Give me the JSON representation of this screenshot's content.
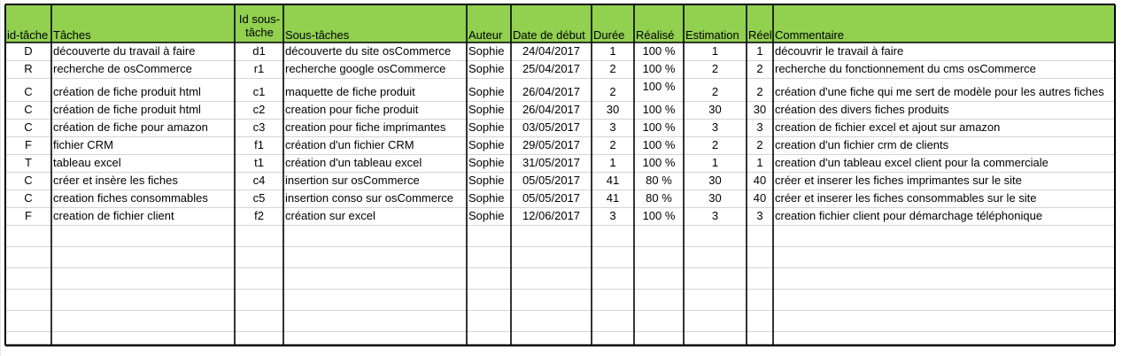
{
  "sheet": {
    "header_fill": "#92d050",
    "grid_color": "#d4d4d4",
    "border_color": "#000000",
    "columns": [
      {
        "key": "id_tache",
        "label": "id-tâche"
      },
      {
        "key": "taches",
        "label": "Tâches"
      },
      {
        "key": "id_sous",
        "label": "Id sous-\ntâche"
      },
      {
        "key": "sous_taches",
        "label": "Sous-tâches"
      },
      {
        "key": "auteur",
        "label": "Auteur"
      },
      {
        "key": "debut",
        "label": "Date de début"
      },
      {
        "key": "duree",
        "label": "Durée"
      },
      {
        "key": "realise",
        "label": "Réalisé"
      },
      {
        "key": "estimation",
        "label": "Estimation"
      },
      {
        "key": "reel",
        "label": "Réel"
      },
      {
        "key": "commentaire",
        "label": "Commentaire"
      }
    ],
    "rows": [
      [
        "D",
        "découverte du travail à faire",
        "d1",
        "découverte du site osCommerce",
        "Sophie",
        "24/04/2017",
        "1",
        "100 %",
        "1",
        "1",
        "découvrir le travail à faire"
      ],
      [
        "R",
        "recherche de osCommerce",
        "r1",
        "recherche google osCommerce",
        "Sophie",
        "25/04/2017",
        "2",
        "100 %",
        "2",
        "2",
        "recherche du fonctionnement du cms osCommerce"
      ],
      [
        "C",
        "création de fiche produit html",
        "c1",
        "maquette de fiche produit",
        "Sophie",
        "26/04/2017",
        "2",
        "100 %",
        "2",
        "2",
        "création d'une fiche qui me sert de modèle pour les autres fiches"
      ],
      [
        "C",
        "création de fiche produit html",
        "c2",
        "creation pour fiche produit",
        "Sophie",
        "26/04/2017",
        "30",
        "100 %",
        "30",
        "30",
        "création des divers fiches produits"
      ],
      [
        "C",
        "création de fiche pour amazon",
        "c3",
        "creation pour fiche imprimantes",
        "Sophie",
        "03/05/2017",
        "3",
        "100 %",
        "3",
        "3",
        "creation de fichier excel et ajout sur amazon"
      ],
      [
        "F",
        "fichier CRM",
        "f1",
        "création d'un fichier CRM",
        "Sophie",
        "29/05/2017",
        "2",
        "100 %",
        "2",
        "2",
        "creation d'un fichier crm de clients"
      ],
      [
        "T",
        "tableau excel",
        "t1",
        "création d'un tableau excel",
        "Sophie",
        "31/05/2017",
        "1",
        "100 %",
        "1",
        "1",
        "creation d'un tableau excel client pour la commerciale"
      ],
      [
        "C",
        "créer et insère les fiches",
        "c4",
        "insertion sur osCommerce",
        "Sophie",
        "05/05/2017",
        "41",
        "80 %",
        "30",
        "40",
        "créer et inserer les fiches imprimantes sur le site"
      ],
      [
        "C",
        "creation fiches consommables",
        "c5",
        "insertion conso sur osCommerce",
        "Sophie",
        "05/05/2017",
        "41",
        "80 %",
        "30",
        "40",
        "créer et inserer les fiches consommables sur le site"
      ],
      [
        "F",
        "creation de fichier client",
        "f2",
        "création sur excel",
        "Sophie",
        "12/06/2017",
        "3",
        "100 %",
        "3",
        "3",
        "creation fichier client pour démarchage téléphonique"
      ]
    ]
  }
}
